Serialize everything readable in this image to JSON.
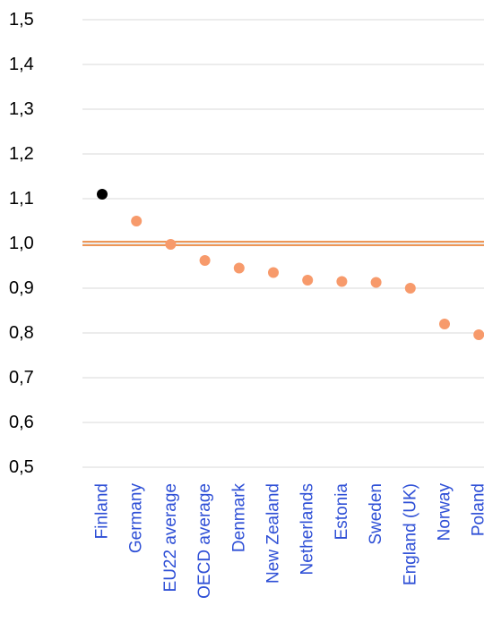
{
  "chart_data": {
    "type": "scatter",
    "categories": [
      "Finland",
      "Germany",
      "EU22 average",
      "OECD average",
      "Denmark",
      "New Zealand",
      "Netherlands",
      "Estonia",
      "Sweden",
      "England (UK)",
      "Norway",
      "Poland"
    ],
    "values": [
      1.11,
      1.05,
      0.998,
      0.962,
      0.945,
      0.935,
      0.918,
      0.915,
      0.913,
      0.9,
      0.82,
      0.796
    ],
    "highlight_category": "Finland",
    "highlight_color": "#000000",
    "point_color": "#f79a6b",
    "reference_line": {
      "value": 1.0,
      "color": "#e8731f",
      "style": "double"
    },
    "ylim": [
      0.5,
      1.5
    ],
    "yticks": [
      "0,5",
      "0,6",
      "0,7",
      "0,8",
      "0,9",
      "1,0",
      "1,1",
      "1,2",
      "1,3",
      "1,4",
      "1,5"
    ],
    "grid": true,
    "gridline_color": "#d9d9d9",
    "category_label_color": "#2e4fd6",
    "tick_label_color": "#000000",
    "title": "",
    "xlabel": "",
    "ylabel": ""
  }
}
